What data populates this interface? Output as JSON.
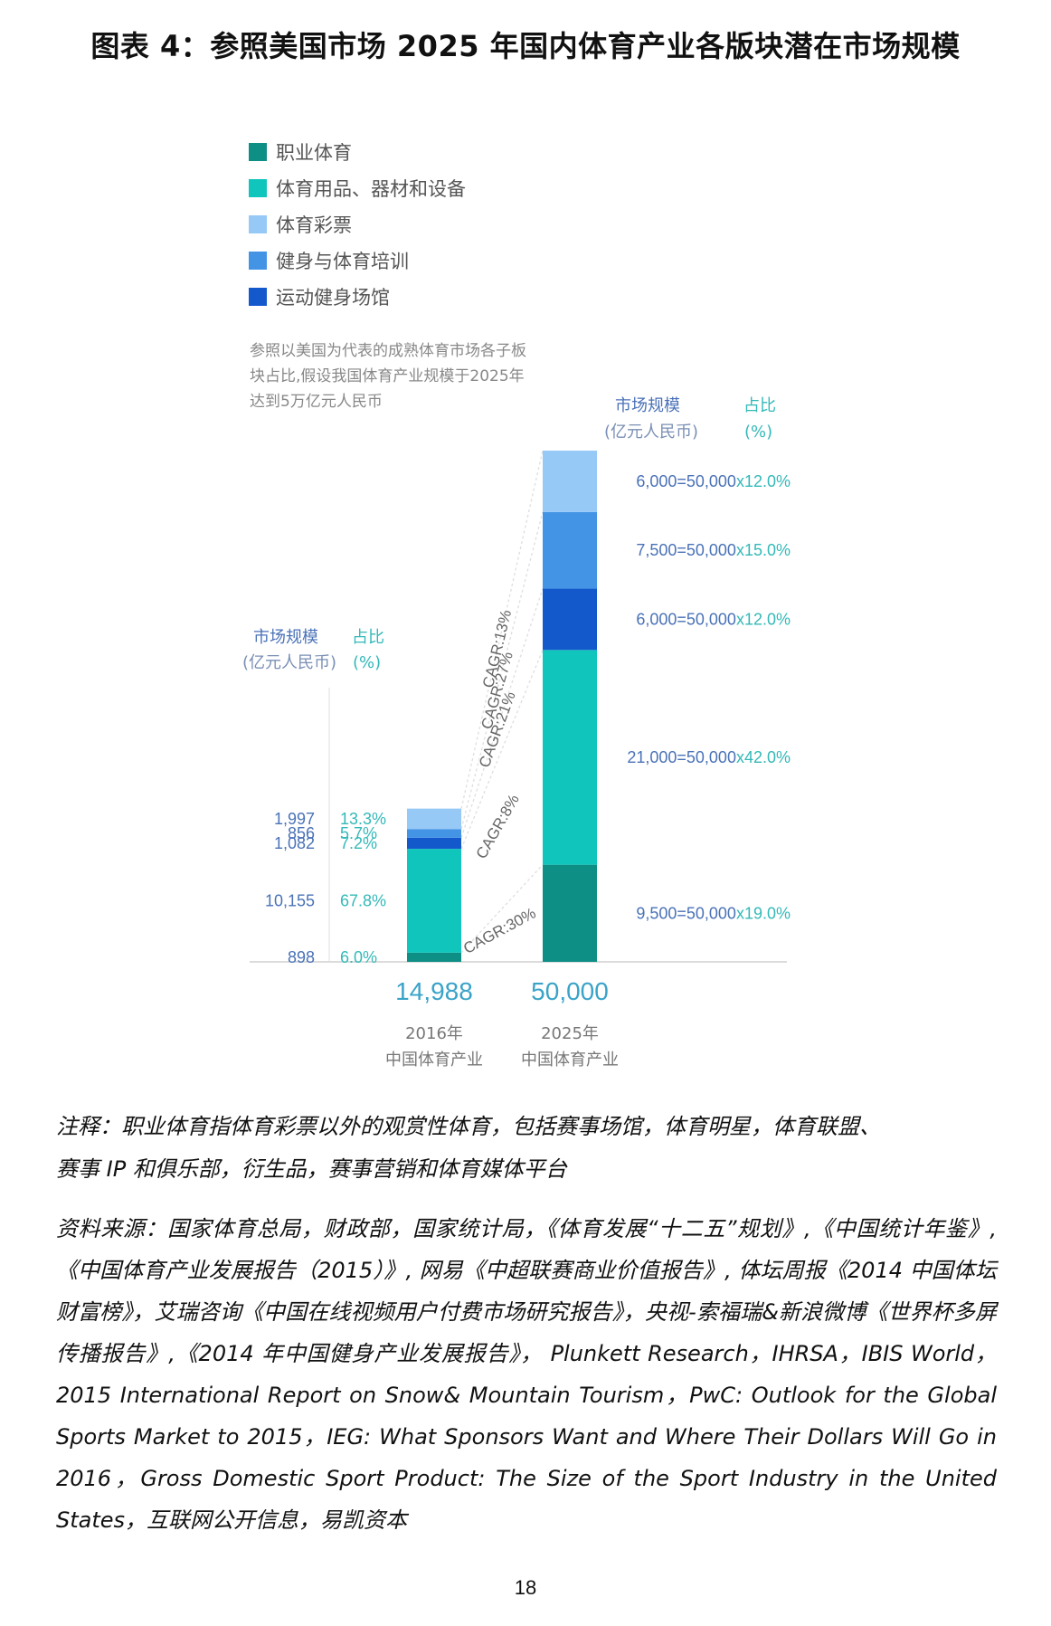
{
  "title": "图表 4：参照美国市场 2025 年国内体育产业各版块潜在市场规模",
  "colors": {
    "pro_sports": "#0e8f86",
    "equipment": "#10c6bc",
    "lottery": "#96c9f6",
    "fitness": "#4494e6",
    "venues": "#1459cc",
    "blue_text": "#4a72b7",
    "teal_text": "#33b9b8"
  },
  "legend": [
    {
      "label": "职业体育",
      "color_key": "pro_sports"
    },
    {
      "label": "体育用品、器材和设备",
      "color_key": "equipment"
    },
    {
      "label": "体育彩票",
      "color_key": "lottery"
    },
    {
      "label": "健身与体育培训",
      "color_key": "fitness"
    },
    {
      "label": "运动健身场馆",
      "color_key": "venues"
    }
  ],
  "assumption_lines": [
    "参照以美国为代表的成熟体育市场各子板",
    "块占比,假设我国体育产业规模于2025年",
    "达到5万亿元人民币"
  ],
  "headers": {
    "market_size": "市场规模",
    "market_unit": "(亿元人民币)",
    "share": "占比",
    "share_unit": "(%)"
  },
  "chart_data": {
    "type": "bar",
    "stacked": true,
    "categories": [
      "2016年 中国体育产业",
      "2025年 中国体育产业"
    ],
    "category_lines": [
      [
        "2016年",
        "中国体育产业"
      ],
      [
        "2025年",
        "中国体育产业"
      ]
    ],
    "totals": [
      "14,988",
      "50,000"
    ],
    "series": [
      {
        "name": "职业体育",
        "color_key": "pro_sports",
        "values": [
          898,
          9500
        ],
        "labels_2016": {
          "value": "898",
          "share": "6.0%"
        },
        "label_2025": {
          "equation": "9,500=50,000",
          "pct": "x19.0%"
        }
      },
      {
        "name": "体育用品、器材和设备",
        "color_key": "equipment",
        "values": [
          10155,
          21000
        ],
        "labels_2016": {
          "value": "10,155",
          "share": "67.8%"
        },
        "label_2025": {
          "equation": "21,000=50,000",
          "pct": "x42.0%"
        }
      },
      {
        "name": "运动健身场馆",
        "color_key": "venues",
        "values": [
          1082,
          6000
        ],
        "labels_2016": {
          "value": "1,082",
          "share": "7.2%"
        },
        "label_2025": {
          "equation": "6,000=50,000",
          "pct": "x12.0%"
        }
      },
      {
        "name": "健身与体育培训",
        "color_key": "fitness",
        "values": [
          856,
          7500
        ],
        "labels_2016": {
          "value": "856",
          "share": "5.7%"
        },
        "label_2025": {
          "equation": "7,500=50,000",
          "pct": "x15.0%"
        }
      },
      {
        "name": "体育彩票",
        "color_key": "lottery",
        "values": [
          1997,
          6000
        ],
        "labels_2016": {
          "value": "1,997",
          "share": "13.3%"
        },
        "label_2025": {
          "equation": "6,000=50,000",
          "pct": "x12.0%"
        }
      }
    ],
    "cagr": [
      "CAGR:30%",
      "CAGR:8%",
      "CAGR:21%",
      "CAGR:27%",
      "CAGR:13%"
    ]
  },
  "notes": {
    "note_lines": [
      "注释：职业体育指体育彩票以外的观赏性体育，包括赛事场馆，体育明星，体育联盟、",
      "赛事 IP 和俱乐部，衍生品，赛事营销和体育媒体平台"
    ],
    "source": "资料来源：国家体育总局，财政部，国家统计局，《体育发展“十二五”规划》,《中国统计年鉴》,《中国体育产业发展报告（2015）》, 网易《中超联赛商业价值报告》, 体坛周报《2014 中国体坛财富榜》，艾瑞咨询《中国在线视频用户付费市场研究报告》，央视-索福瑞&新浪微博《世界杯多屏传播报告》,《2014 年中国健身产业发展报告》， Plunkett Research，IHRSA，IBIS World，2015 International Report on Snow& Mountain Tourism，PwC: Outlook for the Global Sports Market to 2015，IEG: What Sponsors Want and Where Their Dollars Will Go in 2016，Gross Domestic Sport Product: The Size of the Sport Industry in the United States，互联网公开信息，易凯资本"
  },
  "page_number": "18"
}
